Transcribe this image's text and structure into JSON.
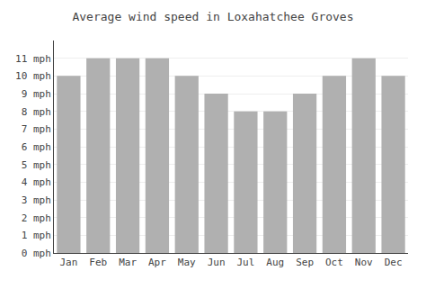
{
  "chart_data": {
    "type": "bar",
    "title": "Average wind speed in Loxahatchee Groves",
    "categories": [
      "Jan",
      "Feb",
      "Mar",
      "Apr",
      "May",
      "Jun",
      "Jul",
      "Aug",
      "Sep",
      "Oct",
      "Nov",
      "Dec"
    ],
    "values": [
      10,
      11,
      11,
      11,
      10,
      9,
      8,
      8,
      9,
      10,
      11,
      10
    ],
    "color": "#b0b0b0",
    "ylim": [
      0,
      12
    ],
    "yticks": [
      {
        "value": 0,
        "label": "0 mph"
      },
      {
        "value": 1,
        "label": "1 mph"
      },
      {
        "value": 2,
        "label": "2 mph"
      },
      {
        "value": 3,
        "label": "3 mph"
      },
      {
        "value": 4,
        "label": "4 mph"
      },
      {
        "value": 5,
        "label": "5 mph"
      },
      {
        "value": 6,
        "label": "6 mph"
      },
      {
        "value": 7,
        "label": "7 mph"
      },
      {
        "value": 8,
        "label": "8 mph"
      },
      {
        "value": 9,
        "label": "9 mph"
      },
      {
        "value": 10,
        "label": "10 mph"
      },
      {
        "value": 11,
        "label": "11 mph"
      }
    ],
    "grid": true
  }
}
